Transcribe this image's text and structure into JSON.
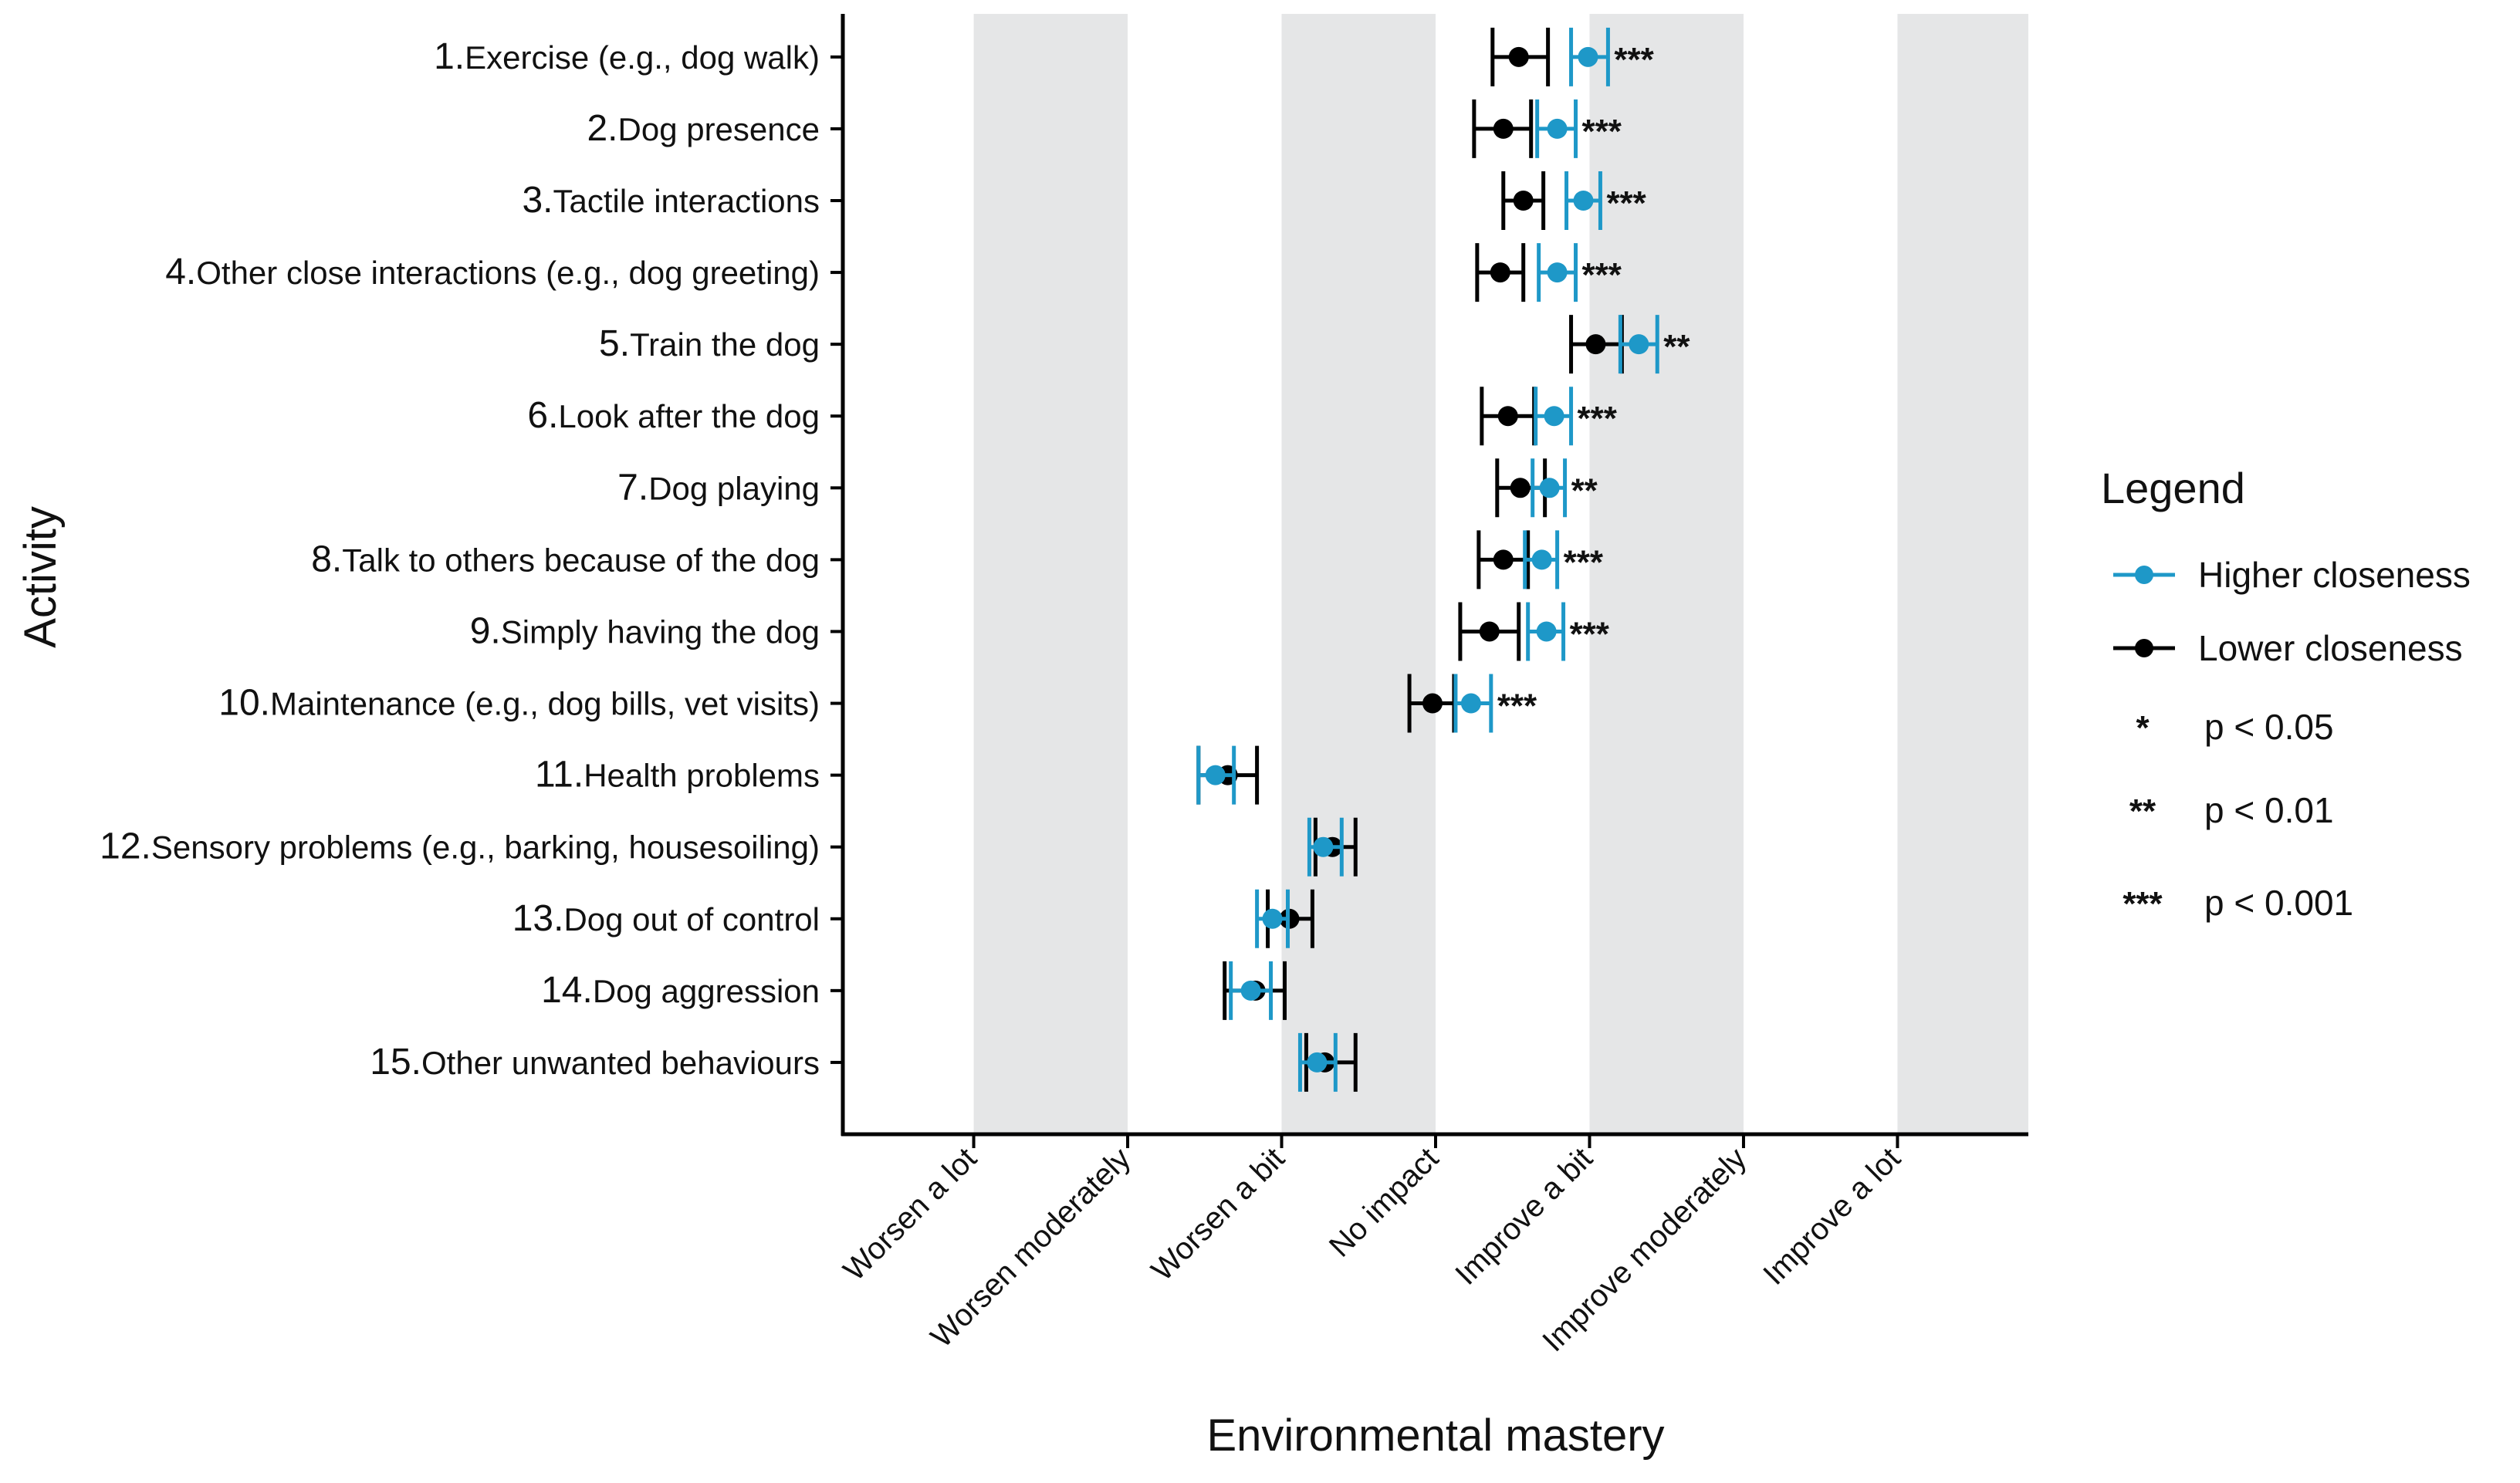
{
  "chart_data": {
    "type": "forest",
    "xlabel": "Environmental mastery",
    "ylabel": "Activity",
    "x_ticks": [
      "Worsen a lot",
      "Worsen moderately",
      "Worsen a bit",
      "No impact",
      "Improve a bit",
      "Improve moderately",
      "Improve a lot"
    ],
    "xlim": [
      -3.85,
      3.85
    ],
    "legend": {
      "title": "Legend",
      "position": "right",
      "series_entries": [
        "Higher closeness",
        "Lower closeness"
      ],
      "significance": [
        {
          "symbol": "*",
          "label": "p < 0.05"
        },
        {
          "symbol": "**",
          "label": "p < 0.01"
        },
        {
          "symbol": "***",
          "label": "p < 0.001"
        }
      ]
    },
    "colors": {
      "higher": "#1e98c8",
      "lower": "#000000",
      "band": "#e5e6e7"
    },
    "categories": [
      {
        "num": "1.",
        "label": "Exercise (e.g., dog walk)",
        "sig": "***"
      },
      {
        "num": "2.",
        "label": "Dog presence",
        "sig": "***"
      },
      {
        "num": "3.",
        "label": "Tactile interactions",
        "sig": "***"
      },
      {
        "num": "4.",
        "label": "Other close interactions (e.g., dog greeting)",
        "sig": "***"
      },
      {
        "num": "5.",
        "label": "Train the dog",
        "sig": "**"
      },
      {
        "num": "6.",
        "label": "Look after the dog",
        "sig": "***"
      },
      {
        "num": "7.",
        "label": "Dog playing",
        "sig": "**"
      },
      {
        "num": "8.",
        "label": "Talk to others because of the dog",
        "sig": "***"
      },
      {
        "num": "9.",
        "label": "Simply having the dog",
        "sig": "***"
      },
      {
        "num": "10.",
        "label": "Maintenance (e.g., dog bills, vet visits)",
        "sig": "***"
      },
      {
        "num": "11.",
        "label": "Health problems",
        "sig": ""
      },
      {
        "num": "12.",
        "label": "Sensory problems (e.g., barking, housesoiling)",
        "sig": ""
      },
      {
        "num": "13.",
        "label": "Dog out of control",
        "sig": ""
      },
      {
        "num": "14.",
        "label": "Dog aggression",
        "sig": ""
      },
      {
        "num": "15.",
        "label": "Other unwanted behaviours",
        "sig": ""
      }
    ],
    "series": [
      {
        "name": "Lower closeness",
        "key": "lower",
        "mean": [
          0.54,
          0.44,
          0.57,
          0.42,
          1.04,
          0.47,
          0.55,
          0.44,
          0.35,
          -0.02,
          -1.35,
          -0.67,
          -0.95,
          -1.17,
          -0.72
        ],
        "lower": [
          0.37,
          0.25,
          0.44,
          0.27,
          0.88,
          0.3,
          0.4,
          0.28,
          0.16,
          -0.17,
          -1.54,
          -0.78,
          -1.09,
          -1.37,
          -0.84
        ],
        "upper": [
          0.73,
          0.62,
          0.7,
          0.57,
          1.21,
          0.64,
          0.71,
          0.6,
          0.54,
          0.12,
          -1.16,
          -0.52,
          -0.8,
          -0.98,
          -0.52
        ]
      },
      {
        "name": "Higher closeness",
        "key": "higher",
        "mean": [
          0.99,
          0.79,
          0.96,
          0.79,
          1.32,
          0.77,
          0.74,
          0.69,
          0.72,
          0.23,
          -1.43,
          -0.73,
          -1.06,
          -1.2,
          -0.77
        ],
        "lower": [
          0.88,
          0.66,
          0.85,
          0.67,
          1.2,
          0.65,
          0.63,
          0.58,
          0.6,
          0.13,
          -1.54,
          -0.82,
          -1.16,
          -1.33,
          -0.88
        ],
        "upper": [
          1.12,
          0.91,
          1.07,
          0.91,
          1.44,
          0.88,
          0.84,
          0.79,
          0.83,
          0.36,
          -1.31,
          -0.61,
          -0.96,
          -1.07,
          -0.65
        ]
      }
    ]
  }
}
